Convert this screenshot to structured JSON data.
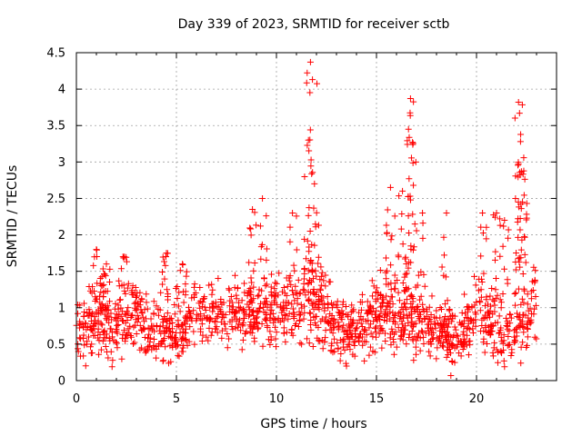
{
  "chart_data": {
    "type": "scatter",
    "title": "Day 339 of 2023, SRMTID for receiver sctb",
    "xlabel": "GPS time / hours",
    "ylabel": "SRMTID / TECUs",
    "xlim": [
      0,
      24
    ],
    "ylim": [
      0,
      4.5
    ],
    "x_ticks": [
      0,
      5,
      10,
      15,
      20
    ],
    "y_ticks": [
      0,
      0.5,
      1,
      1.5,
      2,
      2.5,
      3,
      3.5,
      4,
      4.5
    ],
    "grid": true,
    "marker": "+",
    "point_color": "#ff0000",
    "axis_color": "#000000",
    "grid_color": "#a0a0a0",
    "data_range_hours": [
      0,
      23
    ],
    "series": [
      {
        "name": "sctb",
        "baseline_profile": [
          {
            "x": 0.0,
            "median": 0.6,
            "spread": 0.3
          },
          {
            "x": 1.0,
            "median": 0.85,
            "spread": 0.4
          },
          {
            "x": 2.0,
            "median": 0.8,
            "spread": 0.45
          },
          {
            "x": 3.0,
            "median": 0.95,
            "spread": 0.4
          },
          {
            "x": 4.0,
            "median": 0.65,
            "spread": 0.35
          },
          {
            "x": 5.0,
            "median": 0.7,
            "spread": 0.4
          },
          {
            "x": 6.0,
            "median": 0.9,
            "spread": 0.35
          },
          {
            "x": 7.0,
            "median": 0.95,
            "spread": 0.3
          },
          {
            "x": 8.0,
            "median": 0.95,
            "spread": 0.35
          },
          {
            "x": 9.0,
            "median": 0.9,
            "spread": 0.4
          },
          {
            "x": 10.0,
            "median": 0.95,
            "spread": 0.35
          },
          {
            "x": 11.0,
            "median": 1.0,
            "spread": 0.4
          },
          {
            "x": 12.0,
            "median": 1.1,
            "spread": 0.45
          },
          {
            "x": 13.0,
            "median": 0.75,
            "spread": 0.35
          },
          {
            "x": 14.0,
            "median": 0.7,
            "spread": 0.35
          },
          {
            "x": 15.0,
            "median": 0.95,
            "spread": 0.4
          },
          {
            "x": 16.0,
            "median": 0.95,
            "spread": 0.45
          },
          {
            "x": 17.0,
            "median": 0.8,
            "spread": 0.4
          },
          {
            "x": 18.0,
            "median": 0.75,
            "spread": 0.4
          },
          {
            "x": 19.0,
            "median": 0.5,
            "spread": 0.3
          },
          {
            "x": 20.0,
            "median": 0.95,
            "spread": 0.45
          },
          {
            "x": 21.0,
            "median": 0.75,
            "spread": 0.4
          },
          {
            "x": 22.0,
            "median": 0.6,
            "spread": 0.35
          },
          {
            "x": 23.0,
            "median": 1.1,
            "spread": 0.4
          }
        ],
        "peaks": [
          {
            "x": 1.0,
            "y": 1.8
          },
          {
            "x": 1.5,
            "y": 1.6
          },
          {
            "x": 2.4,
            "y": 1.7
          },
          {
            "x": 4.5,
            "y": 1.75
          },
          {
            "x": 5.3,
            "y": 1.6
          },
          {
            "x": 8.8,
            "y": 2.35
          },
          {
            "x": 9.3,
            "y": 2.5
          },
          {
            "x": 10.8,
            "y": 2.3
          },
          {
            "x": 11.7,
            "y": 4.37
          },
          {
            "x": 11.8,
            "y": 4.13
          },
          {
            "x": 11.6,
            "y": 3.3
          },
          {
            "x": 11.9,
            "y": 2.7
          },
          {
            "x": 15.7,
            "y": 2.65
          },
          {
            "x": 16.3,
            "y": 2.6
          },
          {
            "x": 16.7,
            "y": 3.87
          },
          {
            "x": 16.6,
            "y": 3.45
          },
          {
            "x": 16.8,
            "y": 3.27
          },
          {
            "x": 17.3,
            "y": 2.3
          },
          {
            "x": 18.5,
            "y": 2.3
          },
          {
            "x": 20.3,
            "y": 2.3
          },
          {
            "x": 21.0,
            "y": 2.3
          },
          {
            "x": 21.4,
            "y": 2.2
          },
          {
            "x": 22.1,
            "y": 3.82
          },
          {
            "x": 22.15,
            "y": 3.67
          },
          {
            "x": 22.2,
            "y": 3.28
          },
          {
            "x": 22.1,
            "y": 2.97
          },
          {
            "x": 22.3,
            "y": 2.45
          }
        ]
      }
    ]
  }
}
